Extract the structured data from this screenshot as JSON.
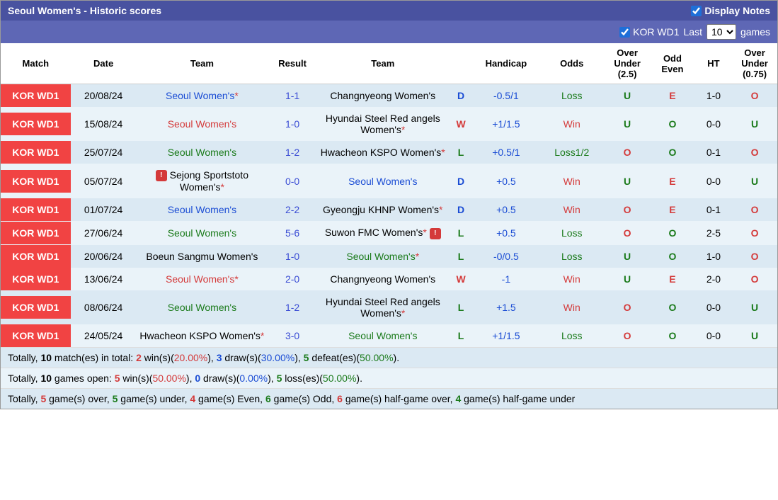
{
  "header": {
    "title": "Seoul Women's - Historic scores",
    "display_notes": "Display Notes"
  },
  "subheader": {
    "filter_label": "KOR WD1",
    "last_label": "Last",
    "games_label": "games",
    "select_value": "10"
  },
  "columns": [
    "Match",
    "Date",
    "Team",
    "Result",
    "Team",
    "",
    "Handicap",
    "Odds",
    "Over Under (2.5)",
    "Odd Even",
    "HT",
    "Over Under (0.75)"
  ],
  "rows": [
    {
      "match": "KOR WD1",
      "date": "20/08/24",
      "team_a": "Seoul Women's",
      "team_a_cls": "team1",
      "team_a_ast": true,
      "result": "1-1",
      "team_b": "Changnyeong Women's",
      "team_b_cls": "",
      "wld": "D",
      "hcp": "-0.5/1",
      "odds": "Loss",
      "odds_cls": "odds-loss",
      "ou": "U",
      "oe": "E",
      "ht": "1-0",
      "ou2": "O"
    },
    {
      "match": "KOR WD1",
      "date": "15/08/24",
      "team_a": "Seoul Women's",
      "team_a_cls": "team3",
      "team_a_ast": false,
      "result": "1-0",
      "team_b": "Hyundai Steel Red angels Women's",
      "team_b_cls": "",
      "team_b_ast": true,
      "wld": "W",
      "hcp": "+1/1.5",
      "odds": "Win",
      "odds_cls": "odds-win",
      "ou": "U",
      "oe": "O",
      "ht": "0-0",
      "ou2": "U"
    },
    {
      "match": "KOR WD1",
      "date": "25/07/24",
      "team_a": "Seoul Women's",
      "team_a_cls": "team2",
      "team_a_ast": false,
      "result": "1-2",
      "team_b": "Hwacheon KSPO Women's",
      "team_b_cls": "",
      "team_b_ast": true,
      "wld": "L",
      "hcp": "+0.5/1",
      "odds": "Loss1/2",
      "odds_cls": "odds-loss",
      "ou": "O",
      "oe": "O",
      "ht": "0-1",
      "ou2": "O"
    },
    {
      "match": "KOR WD1",
      "date": "05/07/24",
      "team_a": "Sejong Sportstoto Women's",
      "team_a_cls": "",
      "team_a_ast": true,
      "team_a_icon": true,
      "result": "0-0",
      "team_b": "Seoul Women's",
      "team_b_cls": "team1",
      "wld": "D",
      "hcp": "+0.5",
      "odds": "Win",
      "odds_cls": "odds-win",
      "ou": "U",
      "oe": "E",
      "ht": "0-0",
      "ou2": "U"
    },
    {
      "match": "KOR WD1",
      "date": "01/07/24",
      "team_a": "Seoul Women's",
      "team_a_cls": "team1",
      "team_a_ast": false,
      "result": "2-2",
      "team_b": "Gyeongju KHNP Women's",
      "team_b_cls": "",
      "team_b_ast": true,
      "wld": "D",
      "hcp": "+0.5",
      "odds": "Win",
      "odds_cls": "odds-win",
      "ou": "O",
      "oe": "E",
      "ht": "0-1",
      "ou2": "O"
    },
    {
      "match": "KOR WD1",
      "date": "27/06/24",
      "team_a": "Seoul Women's",
      "team_a_cls": "team2",
      "team_a_ast": false,
      "result": "5-6",
      "team_b": "Suwon FMC Women's",
      "team_b_cls": "",
      "team_b_ast": true,
      "team_b_icon": true,
      "wld": "L",
      "hcp": "+0.5",
      "odds": "Loss",
      "odds_cls": "odds-loss",
      "ou": "O",
      "oe": "O",
      "ht": "2-5",
      "ou2": "O"
    },
    {
      "match": "KOR WD1",
      "date": "20/06/24",
      "team_a": "Boeun Sangmu Women's",
      "team_a_cls": "",
      "team_a_ast": false,
      "result": "1-0",
      "team_b": "Seoul Women's",
      "team_b_cls": "team2",
      "team_b_ast": true,
      "wld": "L",
      "hcp": "-0/0.5",
      "odds": "Loss",
      "odds_cls": "odds-loss",
      "ou": "U",
      "oe": "O",
      "ht": "1-0",
      "ou2": "O"
    },
    {
      "match": "KOR WD1",
      "date": "13/06/24",
      "team_a": "Seoul Women's",
      "team_a_cls": "team3",
      "team_a_ast": true,
      "result": "2-0",
      "team_b": "Changnyeong Women's",
      "team_b_cls": "",
      "wld": "W",
      "hcp": "-1",
      "odds": "Win",
      "odds_cls": "odds-win",
      "ou": "U",
      "oe": "E",
      "ht": "2-0",
      "ou2": "O"
    },
    {
      "match": "KOR WD1",
      "date": "08/06/24",
      "team_a": "Seoul Women's",
      "team_a_cls": "team2",
      "team_a_ast": false,
      "result": "1-2",
      "team_b": "Hyundai Steel Red angels Women's",
      "team_b_cls": "",
      "team_b_ast": true,
      "wld": "L",
      "hcp": "+1.5",
      "odds": "Win",
      "odds_cls": "odds-win",
      "ou": "O",
      "oe": "O",
      "ht": "0-0",
      "ou2": "U"
    },
    {
      "match": "KOR WD1",
      "date": "24/05/24",
      "team_a": "Hwacheon KSPO Women's",
      "team_a_cls": "",
      "team_a_ast": true,
      "result": "3-0",
      "team_b": "Seoul Women's",
      "team_b_cls": "team2",
      "wld": "L",
      "hcp": "+1/1.5",
      "odds": "Loss",
      "odds_cls": "odds-loss",
      "ou": "O",
      "oe": "O",
      "ht": "0-0",
      "ou2": "U"
    }
  ],
  "summary": {
    "line1_a": "Totally, ",
    "line1_b": "10",
    "line1_c": " match(es) in total: ",
    "line1_d": "2",
    "line1_e": " win(s)(",
    "line1_f": "20.00%",
    "line1_g": "), ",
    "line1_h": "3",
    "line1_i": " draw(s)(",
    "line1_j": "30.00%",
    "line1_k": "), ",
    "line1_l": "5",
    "line1_m": " defeat(es)(",
    "line1_n": "50.00%",
    "line1_o": ").",
    "line2_a": "Totally, ",
    "line2_b": "10",
    "line2_c": " games open: ",
    "line2_d": "5",
    "line2_e": " win(s)(",
    "line2_f": "50.00%",
    "line2_g": "), ",
    "line2_h": "0",
    "line2_i": " draw(s)(",
    "line2_j": "0.00%",
    "line2_k": "), ",
    "line2_l": "5",
    "line2_m": " loss(es)(",
    "line2_n": "50.00%",
    "line2_o": ").",
    "line3_a": "Totally, ",
    "line3_b": "5",
    "line3_c": " game(s) over, ",
    "line3_d": "5",
    "line3_e": " game(s) under, ",
    "line3_f": "4",
    "line3_g": " game(s) Even, ",
    "line3_h": "6",
    "line3_i": " game(s) Odd, ",
    "line3_j": "6",
    "line3_k": " game(s) half-game over, ",
    "line3_l": "4",
    "line3_m": " game(s) half-game under"
  }
}
